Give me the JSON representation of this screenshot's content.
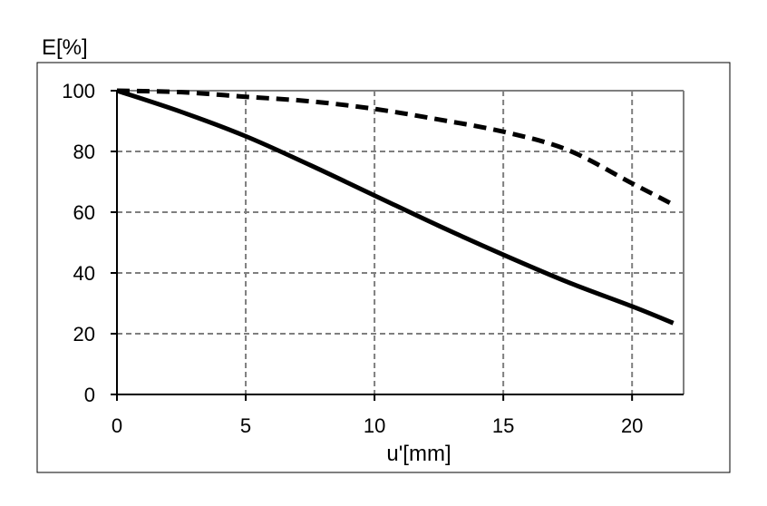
{
  "chart_data": {
    "type": "line",
    "xlabel": "u'[mm]",
    "ylabel": "E[%]",
    "xlim": [
      0,
      22
    ],
    "ylim": [
      0,
      100
    ],
    "x_ticks": [
      "0",
      "5",
      "10",
      "15",
      "20"
    ],
    "y_ticks": [
      "0",
      "20",
      "40",
      "60",
      "80",
      "100"
    ],
    "grid": true,
    "legend": "none",
    "series": [
      {
        "style": "solid",
        "color": "#000000",
        "x": [
          0,
          2.5,
          5,
          7.5,
          10,
          12.5,
          15,
          17.5,
          20,
          21.6
        ],
        "y": [
          100,
          93,
          85,
          75.5,
          65.5,
          55.5,
          46,
          37,
          29,
          23.5
        ]
      },
      {
        "style": "dashed",
        "color": "#000000",
        "x": [
          0,
          2.5,
          5,
          7.5,
          10,
          12.5,
          15,
          17.5,
          20,
          21.6
        ],
        "y": [
          100,
          99.5,
          98,
          96.5,
          94,
          90.5,
          86.5,
          80.5,
          69.5,
          62.5
        ]
      }
    ]
  }
}
